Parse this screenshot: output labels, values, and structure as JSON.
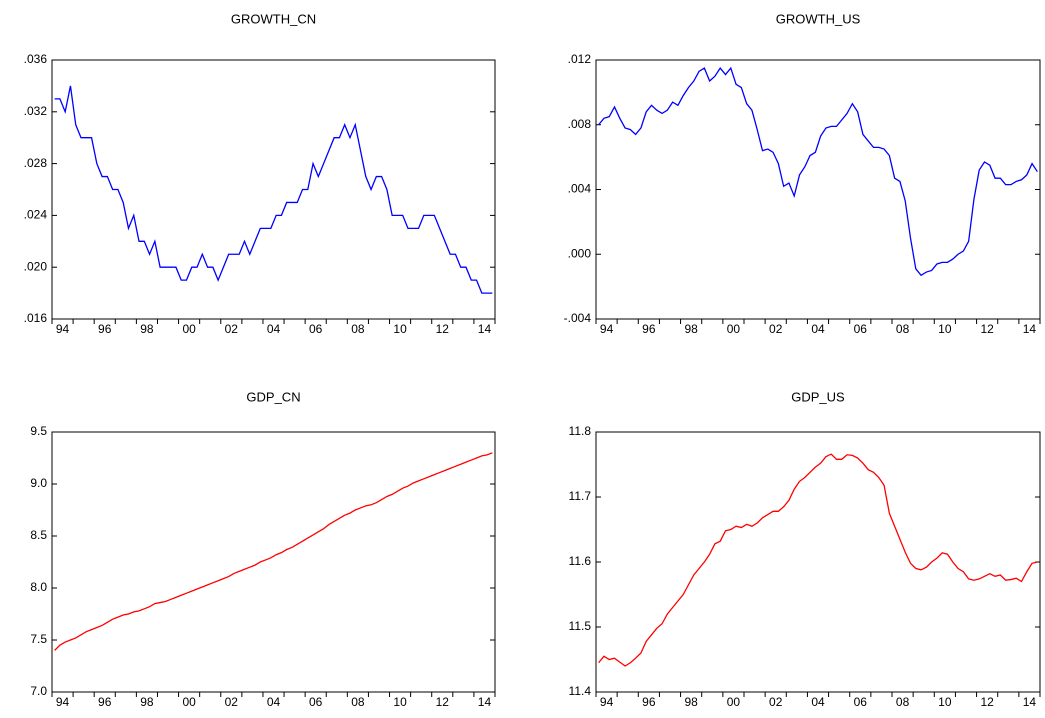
{
  "chart_data": [
    {
      "type": "line",
      "title": "GROWTH_CN",
      "color": "#0000ff",
      "categories": [
        "94",
        null,
        null,
        null,
        null,
        null,
        null,
        null,
        "96",
        null,
        null,
        null,
        null,
        null,
        null,
        null,
        "98",
        null,
        null,
        null,
        null,
        null,
        null,
        null,
        "00",
        null,
        null,
        null,
        null,
        null,
        null,
        null,
        "02",
        null,
        null,
        null,
        null,
        null,
        null,
        null,
        "04",
        null,
        null,
        null,
        null,
        null,
        null,
        null,
        "06",
        null,
        null,
        null,
        null,
        null,
        null,
        null,
        "08",
        null,
        null,
        null,
        null,
        null,
        null,
        null,
        "10",
        null,
        null,
        null,
        null,
        null,
        null,
        null,
        "12",
        null,
        null,
        null,
        null,
        null,
        null,
        null,
        "14",
        null,
        null,
        null
      ],
      "values": [
        0.033,
        0.033,
        0.032,
        0.034,
        0.031,
        0.03,
        0.03,
        0.03,
        0.028,
        0.027,
        0.027,
        0.026,
        0.026,
        0.025,
        0.023,
        0.024,
        0.022,
        0.022,
        0.021,
        0.022,
        0.02,
        0.02,
        0.02,
        0.02,
        0.019,
        0.019,
        0.02,
        0.02,
        0.021,
        0.02,
        0.02,
        0.019,
        0.02,
        0.021,
        0.021,
        0.021,
        0.022,
        0.021,
        0.022,
        0.023,
        0.023,
        0.023,
        0.024,
        0.024,
        0.025,
        0.025,
        0.025,
        0.026,
        0.026,
        0.028,
        0.027,
        0.028,
        0.029,
        0.03,
        0.03,
        0.031,
        0.03,
        0.031,
        0.029,
        0.027,
        0.026,
        0.027,
        0.027,
        0.026,
        0.024,
        0.024,
        0.024,
        0.023,
        0.023,
        0.023,
        0.024,
        0.024,
        0.024,
        0.023,
        0.022,
        0.021,
        0.021,
        0.02,
        0.02,
        0.019,
        0.019,
        0.018,
        0.018,
        0.018
      ],
      "ylim": [
        0.016,
        0.036
      ],
      "yticks": [
        {
          "value": 0.016,
          "label": ".016"
        },
        {
          "value": 0.02,
          "label": ".020"
        },
        {
          "value": 0.024,
          "label": ".024"
        },
        {
          "value": 0.028,
          "label": ".028"
        },
        {
          "value": 0.032,
          "label": ".032"
        },
        {
          "value": 0.036,
          "label": ".036"
        }
      ]
    },
    {
      "type": "line",
      "title": "GROWTH_US",
      "color": "#0000ff",
      "categories": [
        "94",
        null,
        null,
        null,
        null,
        null,
        null,
        null,
        "96",
        null,
        null,
        null,
        null,
        null,
        null,
        null,
        "98",
        null,
        null,
        null,
        null,
        null,
        null,
        null,
        "00",
        null,
        null,
        null,
        null,
        null,
        null,
        null,
        "02",
        null,
        null,
        null,
        null,
        null,
        null,
        null,
        "04",
        null,
        null,
        null,
        null,
        null,
        null,
        null,
        "06",
        null,
        null,
        null,
        null,
        null,
        null,
        null,
        "08",
        null,
        null,
        null,
        null,
        null,
        null,
        null,
        "10",
        null,
        null,
        null,
        null,
        null,
        null,
        null,
        "12",
        null,
        null,
        null,
        null,
        null,
        null,
        null,
        "14",
        null,
        null,
        null
      ],
      "values": [
        0.008,
        0.0084,
        0.0085,
        0.0091,
        0.0084,
        0.0078,
        0.0077,
        0.0074,
        0.0078,
        0.0088,
        0.0092,
        0.0089,
        0.0087,
        0.0089,
        0.0094,
        0.0092,
        0.0098,
        0.0103,
        0.0107,
        0.0113,
        0.0115,
        0.0107,
        0.011,
        0.0115,
        0.0111,
        0.0115,
        0.0105,
        0.0103,
        0.0093,
        0.0089,
        0.0077,
        0.0064,
        0.0065,
        0.0063,
        0.0056,
        0.0042,
        0.0044,
        0.0036,
        0.0049,
        0.0054,
        0.0061,
        0.0063,
        0.0073,
        0.0078,
        0.0079,
        0.0079,
        0.0083,
        0.0087,
        0.0093,
        0.0088,
        0.0074,
        0.007,
        0.0066,
        0.0066,
        0.0065,
        0.0061,
        0.0047,
        0.0045,
        0.0033,
        0.001,
        -0.0009,
        -0.0013,
        -0.0011,
        -0.001,
        -0.0006,
        -0.0005,
        -0.0005,
        -0.0003,
        0.0,
        0.0002,
        0.0008,
        0.0034,
        0.0052,
        0.0057,
        0.0055,
        0.0047,
        0.0047,
        0.0043,
        0.0043,
        0.0045,
        0.0046,
        0.0049,
        0.0056,
        0.0051
      ],
      "ylim": [
        -0.004,
        0.012
      ],
      "yticks": [
        {
          "value": -0.004,
          "label": "-.004"
        },
        {
          "value": 0.0,
          "label": ".000"
        },
        {
          "value": 0.004,
          "label": ".004"
        },
        {
          "value": 0.008,
          "label": ".008"
        },
        {
          "value": 0.012,
          "label": ".012"
        }
      ]
    },
    {
      "type": "line",
      "title": "GDP_CN",
      "color": "#ff0000",
      "categories": [
        "94",
        null,
        null,
        null,
        null,
        null,
        null,
        null,
        "96",
        null,
        null,
        null,
        null,
        null,
        null,
        null,
        "98",
        null,
        null,
        null,
        null,
        null,
        null,
        null,
        "00",
        null,
        null,
        null,
        null,
        null,
        null,
        null,
        "02",
        null,
        null,
        null,
        null,
        null,
        null,
        null,
        "04",
        null,
        null,
        null,
        null,
        null,
        null,
        null,
        "06",
        null,
        null,
        null,
        null,
        null,
        null,
        null,
        "08",
        null,
        null,
        null,
        null,
        null,
        null,
        null,
        "10",
        null,
        null,
        null,
        null,
        null,
        null,
        null,
        "12",
        null,
        null,
        null,
        null,
        null,
        null,
        null,
        "14",
        null,
        null,
        null
      ],
      "values": [
        7.4,
        7.45,
        7.48,
        7.5,
        7.52,
        7.55,
        7.58,
        7.6,
        7.62,
        7.64,
        7.67,
        7.7,
        7.72,
        7.74,
        7.75,
        7.77,
        7.78,
        7.8,
        7.82,
        7.85,
        7.86,
        7.87,
        7.89,
        7.91,
        7.93,
        7.95,
        7.97,
        7.99,
        8.01,
        8.03,
        8.05,
        8.07,
        8.09,
        8.11,
        8.14,
        8.16,
        8.18,
        8.2,
        8.22,
        8.25,
        8.27,
        8.29,
        8.32,
        8.34,
        8.37,
        8.39,
        8.42,
        8.45,
        8.48,
        8.51,
        8.54,
        8.57,
        8.61,
        8.64,
        8.67,
        8.7,
        8.72,
        8.75,
        8.77,
        8.79,
        8.8,
        8.82,
        8.85,
        8.88,
        8.9,
        8.93,
        8.96,
        8.98,
        9.01,
        9.03,
        9.05,
        9.07,
        9.09,
        9.11,
        9.13,
        9.15,
        9.17,
        9.19,
        9.21,
        9.23,
        9.25,
        9.27,
        9.28,
        9.3
      ],
      "ylim": [
        7.0,
        9.5
      ],
      "yticks": [
        {
          "value": 7,
          "label": "7.0"
        },
        7.5,
        {
          "value": 8,
          "label": "8.0"
        },
        8.5,
        {
          "value": 9,
          "label": "9.0"
        },
        9.5
      ]
    },
    {
      "type": "line",
      "title": "GDP_US",
      "color": "#ff0000",
      "categories": [
        "94",
        null,
        null,
        null,
        null,
        null,
        null,
        null,
        "96",
        null,
        null,
        null,
        null,
        null,
        null,
        null,
        "98",
        null,
        null,
        null,
        null,
        null,
        null,
        null,
        "00",
        null,
        null,
        null,
        null,
        null,
        null,
        null,
        "02",
        null,
        null,
        null,
        null,
        null,
        null,
        null,
        "04",
        null,
        null,
        null,
        null,
        null,
        null,
        null,
        "06",
        null,
        null,
        null,
        null,
        null,
        null,
        null,
        "08",
        null,
        null,
        null,
        null,
        null,
        null,
        null,
        "10",
        null,
        null,
        null,
        null,
        null,
        null,
        null,
        "12",
        null,
        null,
        null,
        null,
        null,
        null,
        null,
        "14",
        null,
        null,
        null
      ],
      "values": [
        11.445,
        11.455,
        11.45,
        11.452,
        11.446,
        11.44,
        11.445,
        11.452,
        11.46,
        11.478,
        11.488,
        11.498,
        11.505,
        11.52,
        11.53,
        11.54,
        11.55,
        11.565,
        11.58,
        11.59,
        11.6,
        11.612,
        11.628,
        11.632,
        11.648,
        11.65,
        11.655,
        11.653,
        11.658,
        11.655,
        11.66,
        11.668,
        11.673,
        11.678,
        11.678,
        11.685,
        11.695,
        11.712,
        11.724,
        11.73,
        11.738,
        11.746,
        11.752,
        11.762,
        11.766,
        11.758,
        11.758,
        11.765,
        11.764,
        11.76,
        11.752,
        11.742,
        11.738,
        11.73,
        11.718,
        11.675,
        11.655,
        11.635,
        11.615,
        11.598,
        11.59,
        11.588,
        11.592,
        11.6,
        11.606,
        11.614,
        11.612,
        11.6,
        11.59,
        11.585,
        11.574,
        11.572,
        11.574,
        11.578,
        11.582,
        11.578,
        11.58,
        11.572,
        11.573,
        11.575,
        11.57,
        11.585,
        11.598,
        11.6
      ],
      "ylim": [
        11.4,
        11.8
      ],
      "yticks": [
        11.4,
        11.5,
        11.6,
        11.7,
        11.8
      ]
    }
  ]
}
